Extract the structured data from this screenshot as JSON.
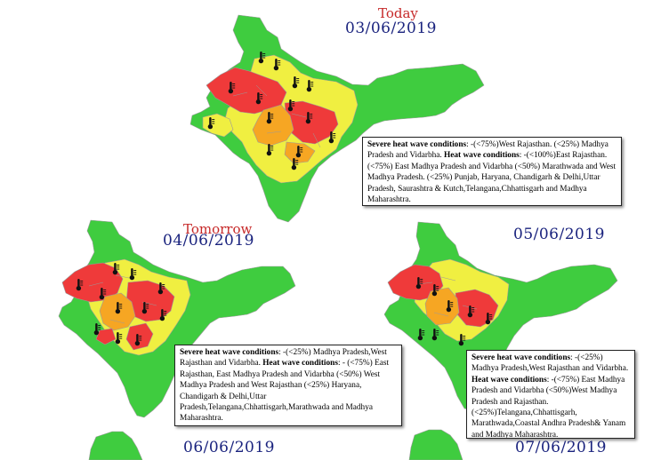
{
  "headings": {
    "today_word": "Today",
    "today_date": "03/06/2019",
    "tomorrow_word": "Tomorrow",
    "tomorrow_date": "04/06/2019",
    "day3_date": "05/06/2019",
    "day4_date": "06/06/2019",
    "day5_date": "07/06/2019"
  },
  "colors": {
    "no_warning": "#3fcc3f",
    "heat_wave": "#f0ef41",
    "heat_wave_likely": "#f6a623",
    "severe_heat_wave": "#ef3a3a",
    "heading_red": "#c62828",
    "heading_blue": "#1a237e"
  },
  "icons": [
    "thermometer-icon"
  ],
  "bulletins": {
    "day1": {
      "severe_label": "Severe heat wave conditions",
      "severe_text": ": -(<75%)West Rajasthan. (<25%) Madhya Pradesh and Vidarbha.",
      "heat_label": "Heat wave conditions",
      "heat_text": ": -(<100%)East Rajasthan. (<75%) East Madhya Pradesh and Vidarbha (<50%) Marathwada and West Madhya Pradesh. (<25%) Punjab, Haryana, Chandigarh & Delhi,Uttar Pradesh, Saurashtra & Kutch,Telangana,Chhattisgarh and Madhya Maharashtra."
    },
    "day2": {
      "severe_label": "Severe heat wave conditions",
      "severe_text": ": -(<25%) Madhya Pradesh,West Rajasthan and Vidarbha.",
      "heat_label": "Heat wave conditions",
      "heat_text": ": - (<75%) East Rajasthan, East Madhya Pradesh and Vidarbha (<50%) West Madhya Pradesh and West Rajasthan (<25%) Haryana, Chandigarh & Delhi,Uttar Pradesh,Telangana,Chhattisgarh,Marathwada and Madhya Maharashtra."
    },
    "day3": {
      "severe_label": "Severe heat wave conditions",
      "severe_text": ": -(<25%) Madhya Pradesh,West Rajasthan and Vidarbha.",
      "heat_label": "Heat wave conditions",
      "heat_text": ": -(<75%) East Madhya Pradesh and Vidarbha (<50%)West Madhya Pradesh and Rajasthan.(<25%)Telangana,Chhattisgarh, Marathwada,Coastal Andhra Pradesh& Yanam and Madhya Maharashtra."
    }
  }
}
